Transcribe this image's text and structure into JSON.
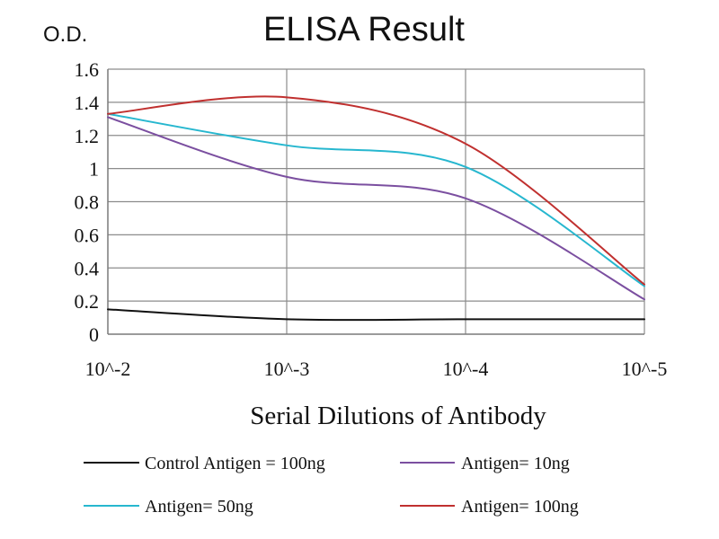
{
  "chart_data": {
    "type": "line",
    "title": "ELISA Result",
    "ylabel": "O.D.",
    "xlabel": "Serial Dilutions of Antibody",
    "x_ticks": [
      "10^-2",
      "10^-3",
      "10^-4",
      "10^-5"
    ],
    "y_ticks": [
      "0",
      "0.2",
      "0.4",
      "0.6",
      "0.8",
      "1",
      "1.2",
      "1.4",
      "1.6"
    ],
    "ylim": [
      0,
      1.6
    ],
    "grid": true,
    "legend_position": "bottom",
    "series": [
      {
        "name": "Control Antigen = 100ng",
        "color": "#111111",
        "x": [
          "10^-2",
          "10^-3",
          "10^-4",
          "10^-5"
        ],
        "values": [
          0.15,
          0.09,
          0.09,
          0.09
        ]
      },
      {
        "name": "Antigen= 10ng",
        "color": "#7b4fa0",
        "x": [
          "10^-2",
          "10^-3",
          "10^-4",
          "10^-5"
        ],
        "values": [
          1.31,
          0.95,
          0.82,
          0.21
        ]
      },
      {
        "name": "Antigen= 50ng",
        "color": "#27b7cf",
        "x": [
          "10^-2",
          "10^-3",
          "10^-4",
          "10^-5"
        ],
        "values": [
          1.33,
          1.14,
          1.01,
          0.29
        ]
      },
      {
        "name": "Antigen= 100ng",
        "color": "#c0302f",
        "x": [
          "10^-2",
          "10^-3",
          "10^-4",
          "10^-5"
        ],
        "values": [
          1.33,
          1.43,
          1.15,
          0.3
        ]
      }
    ]
  }
}
